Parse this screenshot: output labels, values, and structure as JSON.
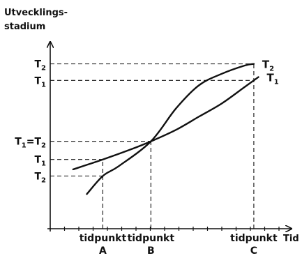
{
  "chart_data": {
    "type": "line",
    "ylabel": [
      "Utvecklings-",
      "stadium"
    ],
    "xlabel": "Tid",
    "grid": false,
    "y_ticks": [
      {
        "main": "T",
        "sub": "2",
        "value": 10
      },
      {
        "main": "T",
        "sub": "1",
        "value": 9
      },
      {
        "main": "T",
        "sub": "1",
        "rest": "=T",
        "sub2": "2",
        "value": 5.3
      },
      {
        "main": "T",
        "sub": "1",
        "value": 4.2
      },
      {
        "main": "T",
        "sub": "2",
        "value": 3.2
      }
    ],
    "x_ticks": [
      {
        "line1": "tidpunkt",
        "line2": "A",
        "value": 2.3
      },
      {
        "line1": "tidpunkt",
        "line2": "B",
        "value": 4.4
      },
      {
        "line1": "tidpunkt",
        "line2": "C",
        "value": 8.9
      }
    ],
    "xlim": [
      0,
      10
    ],
    "ylim": [
      0,
      11
    ],
    "series": [
      {
        "name": "T₂",
        "label_main": "T",
        "label_sub": "2",
        "x": [
          1.6,
          2.3,
          3.0,
          4.4,
          5.5,
          6.5,
          7.5,
          8.5,
          8.9
        ],
        "y": [
          2.1,
          3.2,
          3.8,
          5.3,
          7.3,
          8.7,
          9.4,
          9.9,
          10.0
        ]
      },
      {
        "name": "T₁",
        "label_main": "T",
        "label_sub": "1",
        "x": [
          1.0,
          2.3,
          3.5,
          4.4,
          5.5,
          6.5,
          7.5,
          8.5,
          9.1
        ],
        "y": [
          3.6,
          4.2,
          4.8,
          5.3,
          6.0,
          6.8,
          7.6,
          8.6,
          9.2
        ]
      }
    ]
  }
}
